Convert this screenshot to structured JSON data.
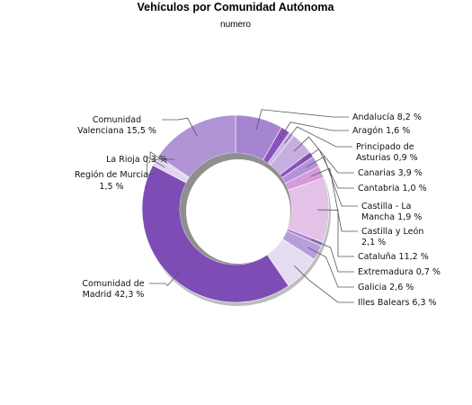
{
  "chart_data": {
    "type": "pie",
    "title": "Vehículos por Comunidad Autónoma",
    "subtitle": "numero",
    "unit": "%",
    "slices": [
      {
        "label": "Andalucía 8,2 %",
        "value": 8.2,
        "color": "#a685d0"
      },
      {
        "label": "Aragón 1,6 %",
        "value": 1.6,
        "color": "#8a52be"
      },
      {
        "label": "Principado de Asturias 0,9 %",
        "value": 0.9,
        "color": "#c9b4e6"
      },
      {
        "label": "Canarias 3,9 %",
        "value": 3.9,
        "color": "#c7aee0"
      },
      {
        "label": "Cantabria 1,0 %",
        "value": 1.0,
        "color": "#8a52be"
      },
      {
        "label": "Castilla - La Mancha 1,9 %",
        "value": 1.9,
        "color": "#b392d6"
      },
      {
        "label": "Castilla y León 2,1 %",
        "value": 2.1,
        "color": "#d49ad9"
      },
      {
        "label": "Cataluña 11,2 %",
        "value": 11.2,
        "color": "#e4c1e6"
      },
      {
        "label": "Extremadura 0,7 %",
        "value": 0.7,
        "color": "#a685d0"
      },
      {
        "label": "Galicia 2,6 %",
        "value": 2.6,
        "color": "#b89ddb"
      },
      {
        "label": "Illes Balears 6,3 %",
        "value": 6.3,
        "color": "#e6dcf1"
      },
      {
        "label": "Comunidad de Madrid 42,3 %",
        "value": 42.3,
        "color": "#7d4db5"
      },
      {
        "label": "Región de Murcia 1,5 %",
        "value": 1.5,
        "color": "#e2d6ef"
      },
      {
        "label": "La Rioja 0,3 %",
        "value": 0.3,
        "color": "#c9b4e6"
      },
      {
        "label": "Comunidad Valenciana 15,5 %",
        "value": 15.5,
        "color": "#b194d6"
      }
    ]
  }
}
